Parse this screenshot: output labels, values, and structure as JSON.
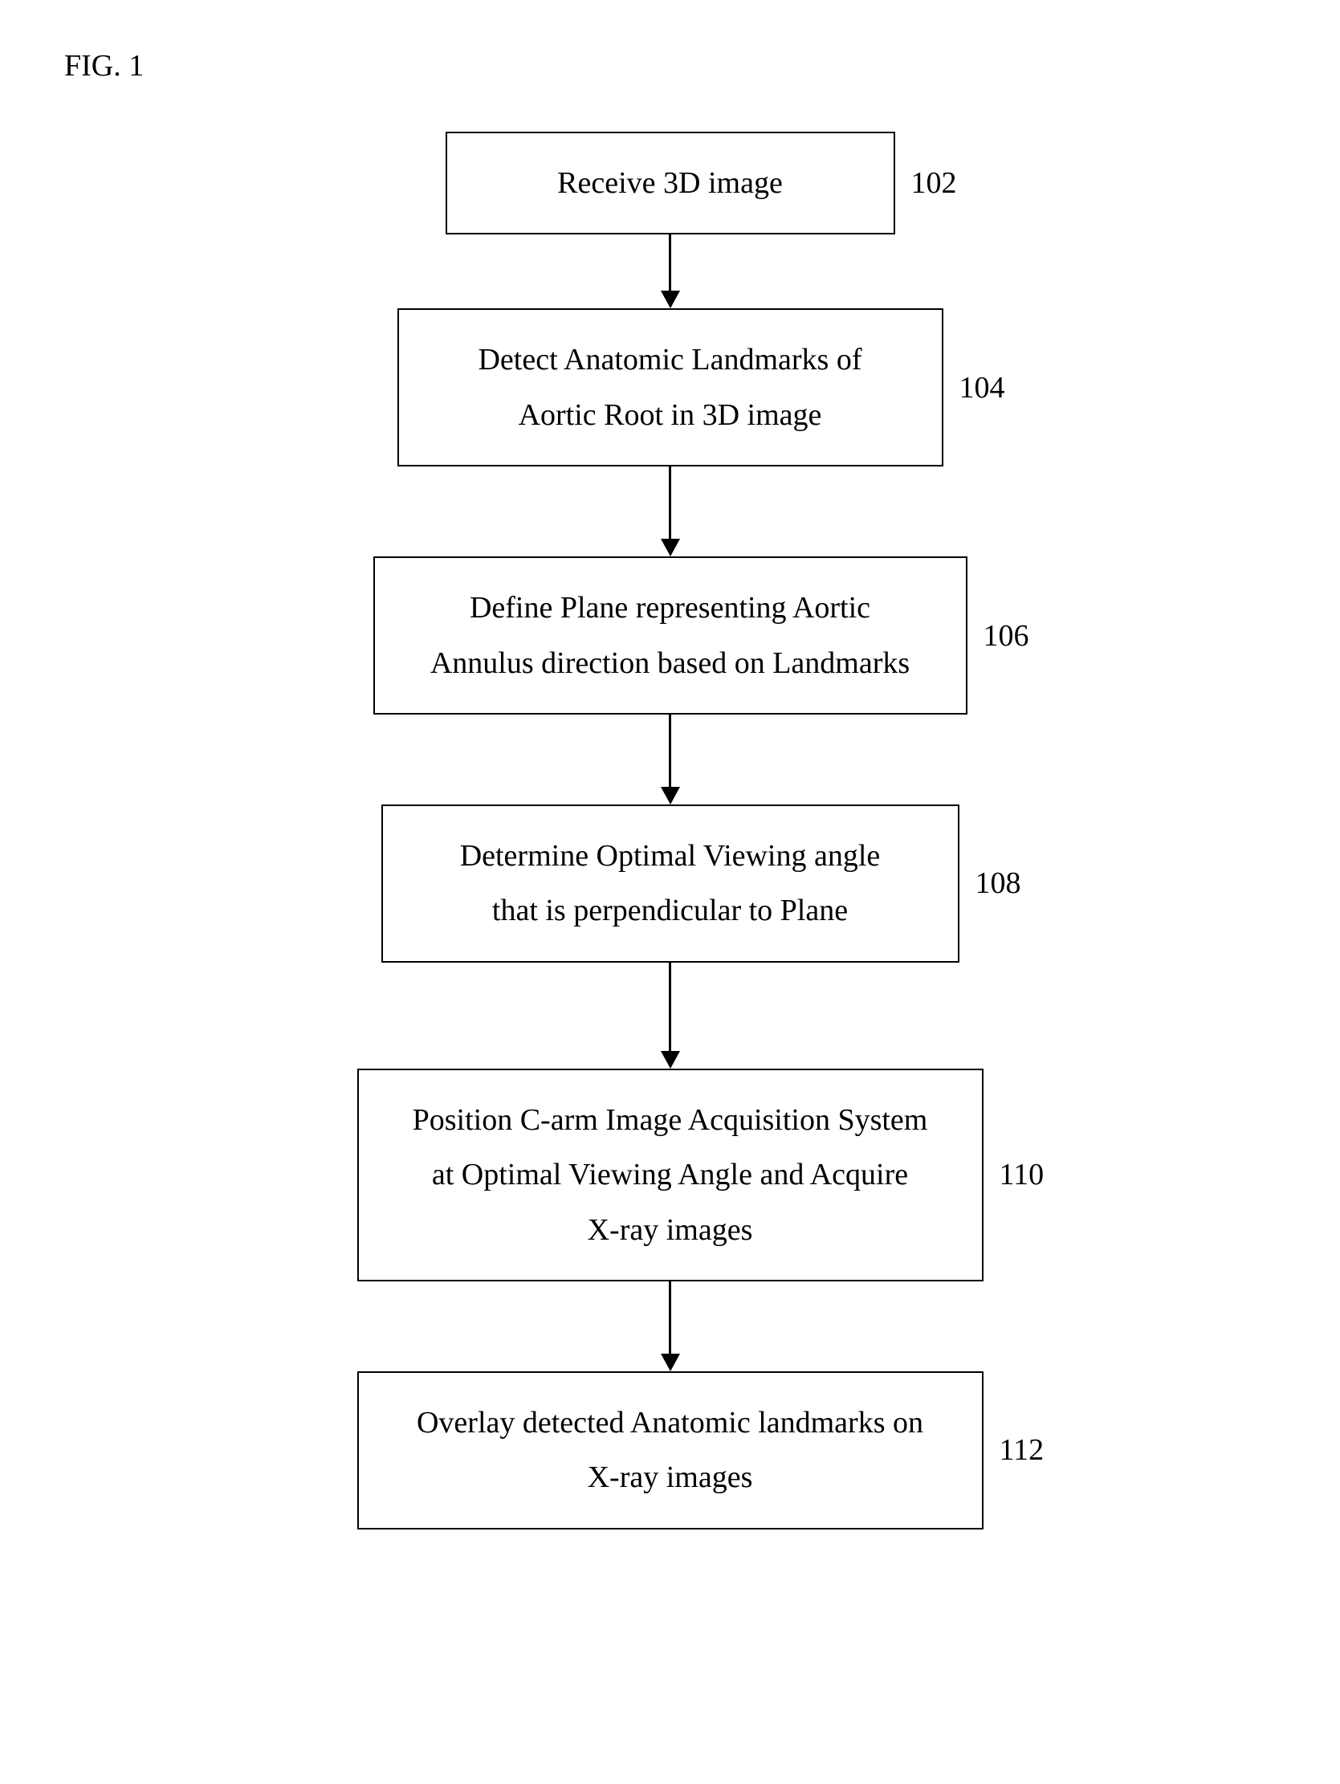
{
  "figure_label": "FIG. 1",
  "flowchart": {
    "type": "flowchart",
    "direction": "vertical",
    "node_border_color": "#000000",
    "node_border_width": 2,
    "node_background": "#ffffff",
    "text_color": "#000000",
    "font_family": "Times New Roman",
    "font_size_pt": 28,
    "arrow_color": "#000000",
    "arrow_line_width": 3,
    "arrow_head_size": 22,
    "steps": [
      {
        "id": "102",
        "text": "Receive 3D image",
        "box_class": "box-small",
        "num_class": "num-small",
        "arrow_height": 70
      },
      {
        "id": "104",
        "text": "Detect Anatomic Landmarks of\nAortic Root in 3D image",
        "box_class": "box-medium",
        "num_class": "num-medium",
        "arrow_height": 90
      },
      {
        "id": "106",
        "text": "Define Plane representing Aortic\nAnnulus direction based on Landmarks",
        "box_class": "box-wider",
        "num_class": "num-wider",
        "arrow_height": 90
      },
      {
        "id": "108",
        "text": "Determine Optimal Viewing angle\nthat is perpendicular to Plane",
        "box_class": "box-wide",
        "num_class": "num-wide",
        "arrow_height": 110
      },
      {
        "id": "110",
        "text": "Position C-arm Image Acquisition System\nat Optimal Viewing Angle and Acquire\nX-ray images",
        "box_class": "box-widest",
        "num_class": "num-widest",
        "arrow_height": 90
      },
      {
        "id": "112",
        "text": "Overlay detected Anatomic landmarks on\nX-ray images",
        "box_class": "box-widest",
        "num_class": "num-widest",
        "arrow_height": 0
      }
    ]
  }
}
